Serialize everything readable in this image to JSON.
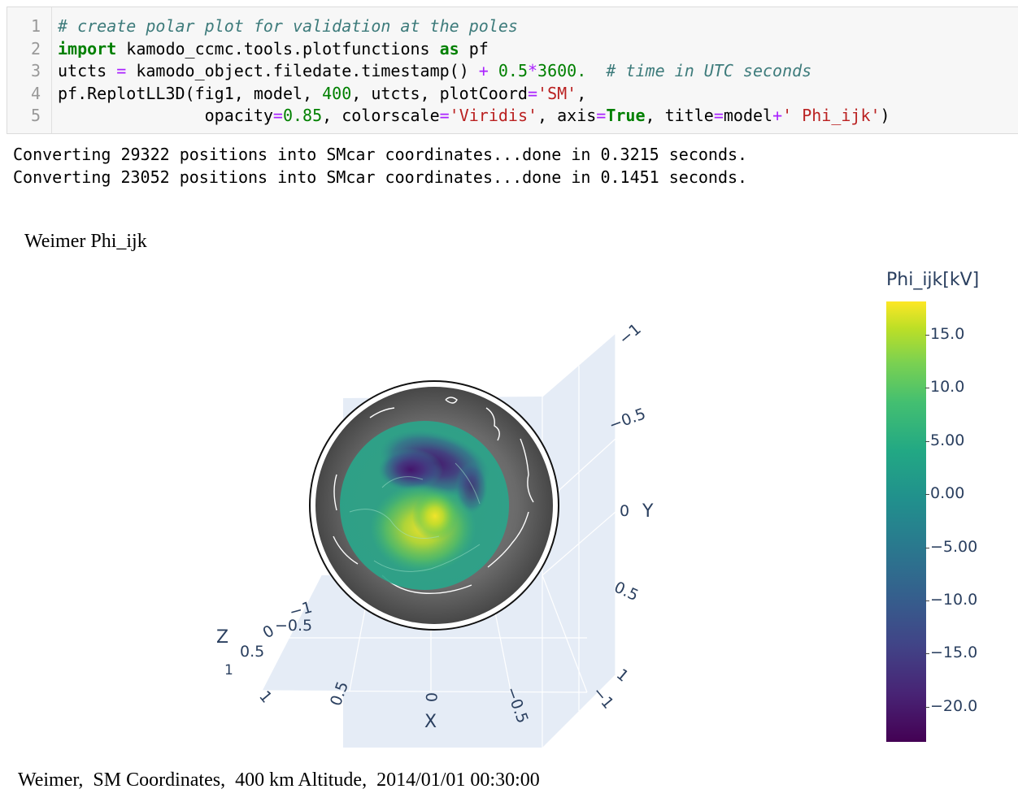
{
  "code": {
    "line_numbers": [
      "1",
      "2",
      "3",
      "4",
      "5"
    ],
    "lines": [
      [
        {
          "t": "# create polar plot for validation at the poles",
          "c": "cmt"
        }
      ],
      [
        {
          "t": "import",
          "c": "kw"
        },
        {
          "t": " kamodo_ccmc.tools.plotfunctions ",
          "c": ""
        },
        {
          "t": "as",
          "c": "kw"
        },
        {
          "t": " pf",
          "c": ""
        }
      ],
      [
        {
          "t": "utcts ",
          "c": ""
        },
        {
          "t": "=",
          "c": "op"
        },
        {
          "t": " kamodo_object.filedate.timestamp() ",
          "c": ""
        },
        {
          "t": "+",
          "c": "op"
        },
        {
          "t": " ",
          "c": ""
        },
        {
          "t": "0.5",
          "c": "num"
        },
        {
          "t": "*",
          "c": "op"
        },
        {
          "t": "3600.",
          "c": "num"
        },
        {
          "t": "  ",
          "c": ""
        },
        {
          "t": "# time in UTC seconds",
          "c": "cmt"
        }
      ],
      [
        {
          "t": "pf.ReplotLL3D(fig1, model, ",
          "c": ""
        },
        {
          "t": "400",
          "c": "num"
        },
        {
          "t": ", utcts, plotCoord",
          "c": ""
        },
        {
          "t": "=",
          "c": "op"
        },
        {
          "t": "'SM'",
          "c": "str"
        },
        {
          "t": ",",
          "c": ""
        }
      ],
      [
        {
          "t": "               opacity",
          "c": ""
        },
        {
          "t": "=",
          "c": "op"
        },
        {
          "t": "0.85",
          "c": "num"
        },
        {
          "t": ", colorscale",
          "c": ""
        },
        {
          "t": "=",
          "c": "op"
        },
        {
          "t": "'Viridis'",
          "c": "str"
        },
        {
          "t": ", axis",
          "c": ""
        },
        {
          "t": "=",
          "c": "op"
        },
        {
          "t": "True",
          "c": "kw"
        },
        {
          "t": ", title",
          "c": ""
        },
        {
          "t": "=",
          "c": "op"
        },
        {
          "t": "model",
          "c": ""
        },
        {
          "t": "+",
          "c": "op"
        },
        {
          "t": "' Phi_ijk'",
          "c": "str"
        },
        {
          "t": ")",
          "c": ""
        }
      ]
    ]
  },
  "output": {
    "line1": "Converting 29322 positions into SMcar coordinates...done in 0.3215 seconds.",
    "line2": "Converting 23052 positions into SMcar coordinates...done in 0.1451 seconds."
  },
  "plot": {
    "title": "Weimer Phi_ijk",
    "footer": "Weimer,  SM Coordinates,  400 km Altitude,  2014/01/01 00:30:00",
    "colors": {
      "axis_text": "#2a3f5f",
      "pane": "#e5ecf6",
      "globe_dark": "#5a5a5a",
      "globe_light": "#888888"
    },
    "x_axis": {
      "label": "X",
      "ticks": [
        "1",
        "0.5",
        "0",
        "−0.5",
        "−1"
      ]
    },
    "y_axis": {
      "label": "Y",
      "ticks": [
        "−1",
        "−0.5",
        "0",
        "0.5",
        "1"
      ]
    },
    "z_axis": {
      "label": "Z",
      "ticks": [
        "−1",
        "−0.5",
        "0",
        "0.5",
        "1"
      ]
    },
    "colorbar": {
      "title": "Phi_ijk[kV]",
      "colorscale": "Viridis",
      "range": [
        -23.5,
        18
      ],
      "ticks": [
        "15.0",
        "10.0",
        "5.00",
        "0.00",
        "−5.00",
        "−10.0",
        "−15.0",
        "−20.0"
      ],
      "tick_values": [
        15,
        10,
        5,
        0,
        -5,
        -10,
        -15,
        -20
      ]
    }
  }
}
